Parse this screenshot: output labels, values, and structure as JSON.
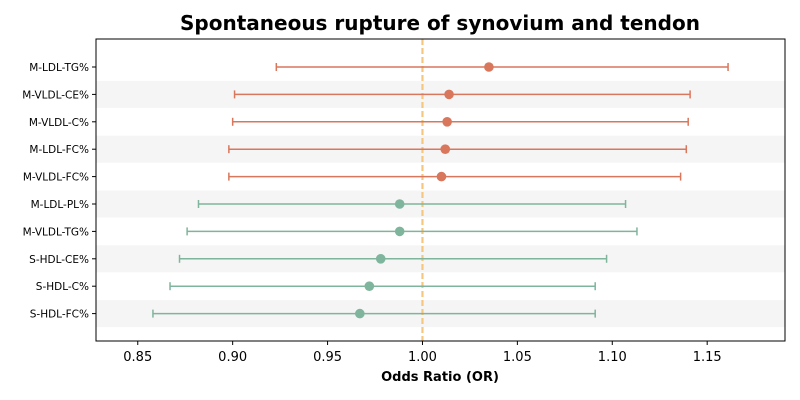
{
  "chart_data": {
    "type": "scatter",
    "subtype": "forest-plot",
    "title": "Spontaneous rupture of synovium and tendon",
    "xlabel": "Odds Ratio (OR)",
    "ylabel": "",
    "xlim": [
      0.828,
      1.191
    ],
    "xticks": [
      0.85,
      0.9,
      0.95,
      1.0,
      1.05,
      1.1,
      1.15
    ],
    "xtick_labels": [
      "0.85",
      "0.90",
      "0.95",
      "1.00",
      "1.05",
      "1.10",
      "1.15"
    ],
    "reference_line": 1.0,
    "grid": false,
    "row_shading": "alternating",
    "colors": {
      "positive": "#D9775C",
      "negative": "#7FB59C",
      "reference": "#F5C77E",
      "band": "#F5F5F5"
    },
    "rows": [
      {
        "label": "M-LDL-TG%",
        "or": 1.035,
        "lower": 0.923,
        "upper": 1.161,
        "color": "#D9775C"
      },
      {
        "label": "M-VLDL-CE%",
        "or": 1.014,
        "lower": 0.901,
        "upper": 1.141,
        "color": "#D9775C"
      },
      {
        "label": "M-VLDL-C%",
        "or": 1.013,
        "lower": 0.9,
        "upper": 1.14,
        "color": "#D9775C"
      },
      {
        "label": "M-LDL-FC%",
        "or": 1.012,
        "lower": 0.898,
        "upper": 1.139,
        "color": "#D9775C"
      },
      {
        "label": "M-VLDL-FC%",
        "or": 1.01,
        "lower": 0.898,
        "upper": 1.136,
        "color": "#D9775C"
      },
      {
        "label": "M-LDL-PL%",
        "or": 0.988,
        "lower": 0.882,
        "upper": 1.107,
        "color": "#7FB59C"
      },
      {
        "label": "M-VLDL-TG%",
        "or": 0.988,
        "lower": 0.876,
        "upper": 1.113,
        "color": "#7FB59C"
      },
      {
        "label": "S-HDL-CE%",
        "or": 0.978,
        "lower": 0.872,
        "upper": 1.097,
        "color": "#7FB59C"
      },
      {
        "label": "S-HDL-C%",
        "or": 0.972,
        "lower": 0.867,
        "upper": 1.091,
        "color": "#7FB59C"
      },
      {
        "label": "S-HDL-FC%",
        "or": 0.967,
        "lower": 0.858,
        "upper": 1.091,
        "color": "#7FB59C"
      }
    ]
  }
}
